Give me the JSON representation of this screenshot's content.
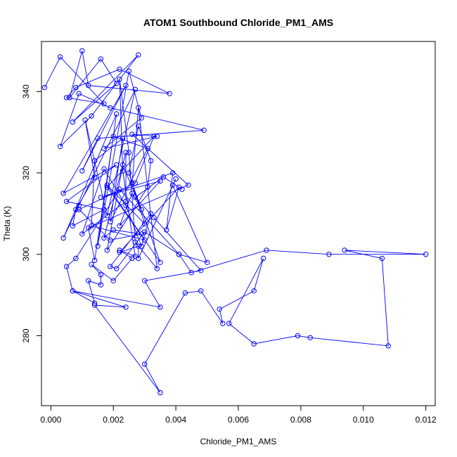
{
  "chart_data": {
    "type": "line",
    "title": "ATOM1 Southbound Chloride_PM1_AMS",
    "xlabel": "Chloride_PM1_AMS",
    "ylabel": "Theta (K)",
    "xlim": [
      -0.0003,
      0.0123
    ],
    "ylim": [
      262.8,
      352.3
    ],
    "x_ticks": [
      0.0,
      0.002,
      0.004,
      0.006,
      0.008,
      0.01,
      0.012
    ],
    "x_tick_labels": [
      "0.000",
      "0.002",
      "0.004",
      "0.006",
      "0.008",
      "0.010",
      "0.012"
    ],
    "y_ticks": [
      280,
      300,
      320,
      340
    ],
    "y_tick_labels": [
      "280",
      "300",
      "320",
      "340"
    ],
    "grid": false,
    "series": [
      {
        "color": "#0000ff",
        "marker": "open-circle",
        "x": [
          -0.0002,
          0.0003,
          0.0017,
          0.0005,
          0.0008,
          0.0022,
          0.0038,
          0.0012,
          0.001,
          0.0006,
          0.0016,
          0.0021,
          0.0007,
          0.0028,
          0.0013,
          0.0003,
          0.0009,
          0.0019,
          0.0049,
          0.0015,
          0.001,
          0.0024,
          0.0004,
          0.0021,
          0.0005,
          0.0017,
          0.0007,
          0.0008,
          0.0014,
          0.0011,
          0.0018,
          0.0027,
          0.0009,
          0.0004,
          0.0021,
          0.0015,
          0.0025,
          0.0029,
          0.0017,
          0.0034,
          0.0026,
          0.0044,
          0.0012,
          0.0014,
          0.002,
          0.0031,
          0.0019,
          0.0023,
          0.0014,
          0.0013,
          0.003,
          0.0018,
          0.0033,
          0.0027,
          0.0009,
          0.0019,
          0.0029,
          0.002,
          0.0017,
          0.0024,
          0.0024,
          0.001,
          0.0017,
          0.0024,
          0.0029,
          0.0032,
          0.0019,
          0.0021,
          0.003,
          0.0041,
          0.0022,
          0.0008,
          0.0005,
          0.0007,
          0.0014,
          0.0012,
          0.0016,
          0.0016,
          0.0013,
          0.002,
          0.0026,
          0.0022,
          0.0027,
          0.0023,
          0.0022,
          0.0025,
          0.0027,
          0.0034,
          0.0028,
          0.0026,
          0.0035,
          0.0018,
          0.003,
          0.0025,
          0.0028,
          0.0032,
          0.0031,
          0.0018,
          0.0023,
          0.0029,
          0.0026,
          0.0022,
          0.0035,
          0.0016,
          0.0039,
          0.0037,
          0.0041,
          0.0022,
          0.0028,
          0.0028,
          0.004,
          0.0039,
          0.005,
          0.0041,
          0.0045,
          0.0069,
          0.0089,
          0.012,
          0.0094,
          0.0106,
          0.0108,
          0.0083,
          0.0079,
          0.0065,
          0.0057,
          0.0068,
          0.0065,
          0.0054,
          0.0055,
          0.0048,
          0.0043,
          0.003,
          0.0035,
          0.0014,
          0.0024,
          0.0007,
          0.0035,
          0.003,
          0.0048,
          0.0033,
          0.0027,
          0.0036,
          0.0042
        ],
        "y": [
          341.0,
          348.5,
          337.0,
          338.5,
          341.0,
          345.5,
          339.5,
          341.5,
          350.0,
          338.5,
          348.0,
          342.0,
          332.5,
          349.0,
          334.0,
          326.5,
          339.5,
          336.0,
          330.5,
          328.5,
          320.5,
          341.5,
          315.0,
          322.0,
          313.0,
          311.0,
          307.0,
          311.0,
          319.0,
          333.0,
          309.5,
          340.5,
          312.0,
          304.0,
          334.5,
          302.0,
          345.0,
          333.5,
          326.0,
          329.0,
          329.5,
          317.0,
          306.5,
          298.5,
          329.0,
          326.0,
          308.0,
          328.5,
          323.0,
          307.0,
          303.5,
          316.5,
          329.0,
          317.5,
          311.0,
          303.5,
          305.0,
          306.0,
          304.0,
          325.0,
          313.0,
          305.0,
          321.0,
          312.0,
          302.0,
          310.0,
          297.0,
          296.5,
          305.5,
          300.0,
          316.0,
          299.0,
          297.0,
          291.0,
          288.0,
          293.5,
          292.5,
          295.0,
          297.5,
          293.5,
          299.0,
          301.0,
          299.5,
          320.5,
          343.0,
          325.0,
          303.0,
          296.5,
          336.0,
          317.5,
          298.0,
          317.0,
          307.5,
          320.0,
          331.5,
          323.0,
          316.5,
          301.0,
          322.0,
          311.0,
          315.0,
          307.0,
          318.0,
          314.0,
          320.0,
          306.0,
          316.5,
          300.5,
          302.0,
          299.0,
          318.5,
          317.0,
          298.0,
          300.0,
          295.5,
          301.0,
          300.0,
          300.0,
          301.0,
          299.0,
          277.5,
          279.5,
          280.0,
          278.0,
          283.0,
          299.0,
          291.0,
          286.5,
          283.0,
          291.0,
          290.5,
          273.0,
          266.0,
          287.5,
          287.0,
          291.0,
          287.0,
          293.5,
          296.0,
          309.0,
          314.0,
          319.0,
          316.0
        ]
      }
    ]
  }
}
